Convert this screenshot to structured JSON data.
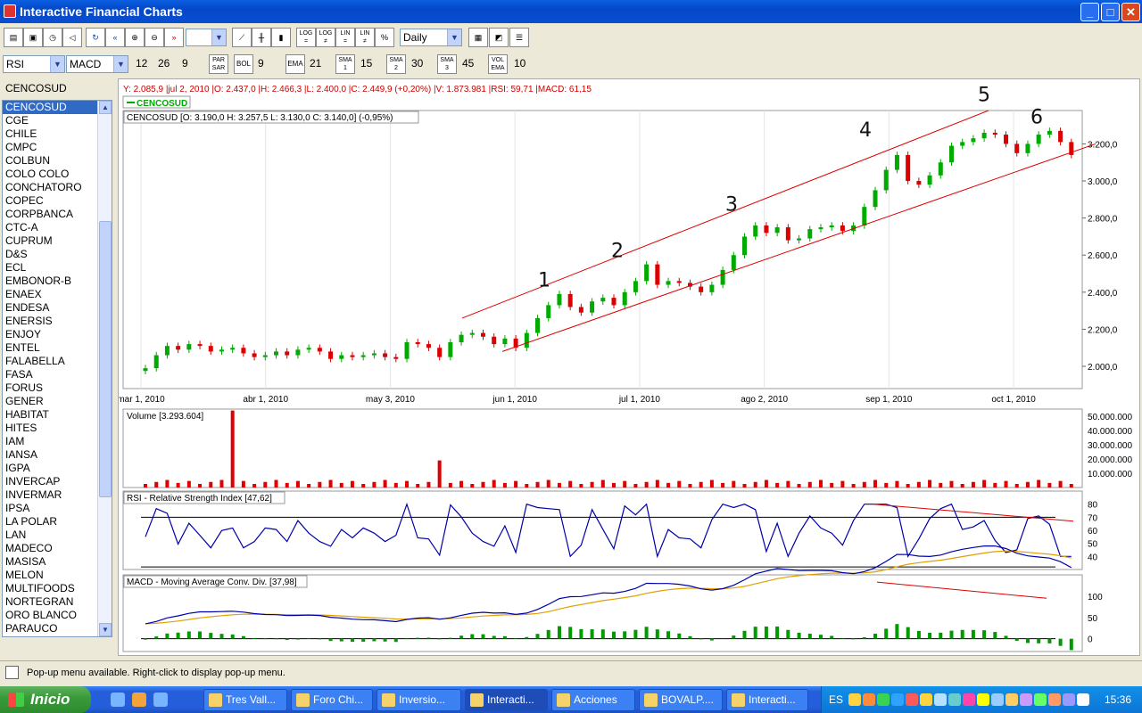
{
  "window": {
    "title": "Interactive Financial Charts"
  },
  "toolbar1": {
    "log_label": "LOG",
    "lin_label": "LIN",
    "pct_label": "%",
    "period": "Daily"
  },
  "toolbar2": {
    "ind1": "RSI",
    "ind2": "MACD",
    "macd_fast": "12",
    "macd_slow": "26",
    "macd_signal": "9",
    "par_label": "PAR SAR",
    "bol_label": "BOL",
    "bol_value": "9",
    "ema_label": "EMA",
    "ema_value": "21",
    "sma1_label": "SMA 1",
    "sma1_value": "15",
    "sma2_label": "SMA 2",
    "sma2_value": "30",
    "sma3_label": "SMA 3",
    "sma3_value": "45",
    "volema_label": "VOL EMA",
    "volema_value": "10"
  },
  "symbols": {
    "header": "CENCOSUD",
    "selected": "CENCOSUD",
    "items": [
      "CENCOSUD",
      "CGE",
      "CHILE",
      "CMPC",
      "COLBUN",
      "COLO COLO",
      "CONCHATORO",
      "COPEC",
      "CORPBANCA",
      "CTC-A",
      "CUPRUM",
      "D&S",
      "ECL",
      "EMBONOR-B",
      "ENAEX",
      "ENDESA",
      "ENERSIS",
      "ENJOY",
      "ENTEL",
      "FALABELLA",
      "FASA",
      "FORUS",
      "GENER",
      "HABITAT",
      "HITES",
      "IAM",
      "IANSA",
      "IGPA",
      "INVERCAP",
      "INVERMAR",
      "IPSA",
      "LA POLAR",
      "LAN",
      "MADECO",
      "MASISA",
      "MELON",
      "MULTIFOODS",
      "NORTEGRAN",
      "ORO BLANCO",
      "PARAUCO"
    ]
  },
  "chart": {
    "info_line": "Y: 2.085,9 |jul 2, 2010 |O: 2.437,0 |H: 2.466,3 |L: 2.400,0 |C: 2.449,9 (+0,20%) |V: 1.873.981 |RSI: 59,71 |MACD: 61,15",
    "legend": "CENCOSUD",
    "price_label": "CENCOSUD [O: 3.190,0  H: 3.257,5  L: 3.130,0  C: 3.140,0] (-0,95%)",
    "volume_label": "Volume [3.293.604]",
    "rsi_label": "RSI - Relative Strength Index [47,62]",
    "macd_label": "MACD - Moving Average Conv. Div. [37,98]",
    "wave_labels": [
      "1",
      "2",
      "3",
      "4",
      "5",
      "6"
    ],
    "colors": {
      "up": "#00aa00",
      "down": "#dd0000",
      "rsi_line": "#0000aa",
      "macd_line": "#0000aa",
      "signal_line": "#e0a000",
      "hist": "#009900",
      "trend": "#dd0000",
      "info": "#cc0000"
    }
  },
  "chart_data": [
    {
      "type": "candlestick",
      "title": "CENCOSUD",
      "x_ticks": [
        "mar 1, 2010",
        "abr 1, 2010",
        "may 3, 2010",
        "jun 1, 2010",
        "jul 1, 2010",
        "ago 2, 2010",
        "sep 1, 2010",
        "oct 1, 2010"
      ],
      "y_ticks": [
        "2.000,0",
        "2.200,0",
        "2.400,0",
        "2.600,0",
        "2.800,0",
        "3.000,0",
        "3.200,0"
      ],
      "ylim": [
        1880,
        3380
      ],
      "close": [
        1990,
        2060,
        2110,
        2090,
        2120,
        2110,
        2080,
        2090,
        2100,
        2070,
        2050,
        2060,
        2080,
        2060,
        2090,
        2100,
        2080,
        2040,
        2060,
        2050,
        2060,
        2070,
        2050,
        2040,
        2130,
        2120,
        2100,
        2050,
        2130,
        2170,
        2180,
        2160,
        2120,
        2150,
        2100,
        2180,
        2260,
        2330,
        2390,
        2320,
        2290,
        2350,
        2370,
        2330,
        2400,
        2460,
        2550,
        2440,
        2460,
        2450,
        2430,
        2400,
        2440,
        2520,
        2600,
        2700,
        2760,
        2720,
        2750,
        2680,
        2690,
        2740,
        2750,
        2760,
        2730,
        2760,
        2860,
        2950,
        3060,
        3140,
        3000,
        2980,
        3030,
        3100,
        3190,
        3210,
        3230,
        3260,
        3250,
        3200,
        3150,
        3200,
        3250,
        3270,
        3210,
        3140
      ]
    },
    {
      "type": "bar",
      "title": "Volume",
      "y_ticks": [
        "10.000.000",
        "20.000.000",
        "30.000.000",
        "40.000.000",
        "50.000.000"
      ],
      "ylim": [
        0,
        55000000
      ],
      "spikes": [
        {
          "date": "mar 14, 2010",
          "value": 54000000
        },
        {
          "date": "may 20, 2010",
          "value": 19000000
        }
      ]
    },
    {
      "type": "line",
      "title": "RSI",
      "y_ticks": [
        "40",
        "50",
        "60",
        "70",
        "80"
      ],
      "ylim": [
        30,
        90
      ],
      "overbought": 70
    },
    {
      "type": "line",
      "title": "MACD",
      "y_ticks": [
        "0",
        "50",
        "100"
      ],
      "ylim": [
        -30,
        150
      ]
    }
  ],
  "status": {
    "text": "Pop-up menu available. Right-click to display pop-up menu."
  },
  "taskbar": {
    "start": "Inicio",
    "tasks": [
      "Tres Vall...",
      "Foro Chi...",
      "Inversio...",
      "Interacti...",
      "Acciones",
      "BOVALP....",
      "Interacti..."
    ],
    "lang": "ES",
    "clock": "15:36"
  }
}
